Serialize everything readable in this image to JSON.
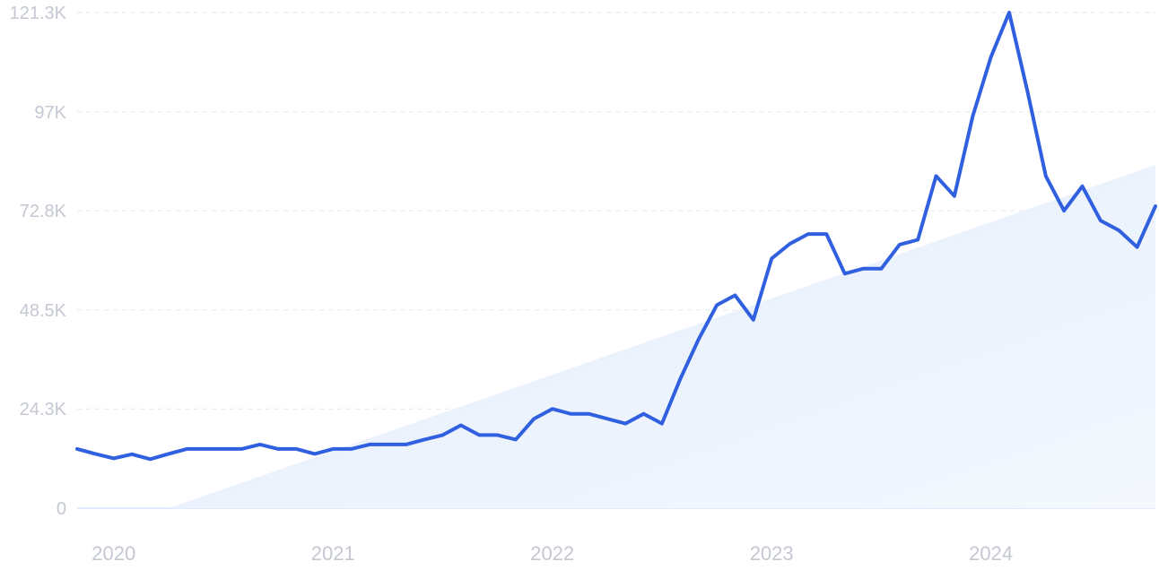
{
  "colors": {
    "line": "#3060e0",
    "trend_fill_light": "#f4f8fe",
    "trend_fill_dark": "#e2edfc",
    "grid": "#e3e6ec",
    "tick_text": "#c4c8d3"
  },
  "chart_data": {
    "type": "line",
    "grid": true,
    "legend": "none",
    "xlim": [
      "2019-11",
      "2024-10"
    ],
    "ylim": [
      0,
      121300
    ],
    "yticks": [
      0,
      24300,
      48500,
      72800,
      97000,
      121300
    ],
    "ytick_labels": [
      "0",
      "24.3K",
      "48.5K",
      "72.8K",
      "97K",
      "121.3K"
    ],
    "xticks": [
      "2020-01",
      "2021-01",
      "2022-01",
      "2023-01",
      "2024-01"
    ],
    "xtick_labels": [
      "2020",
      "2021",
      "2022",
      "2023",
      "2024"
    ],
    "trend": {
      "x": [
        "2020-04",
        "2024-10"
      ],
      "y": [
        0,
        84000
      ]
    },
    "series": [
      {
        "x": [
          "2019-11",
          "2019-12",
          "2020-01",
          "2020-02",
          "2020-03",
          "2020-04",
          "2020-05",
          "2020-06",
          "2020-07",
          "2020-08",
          "2020-09",
          "2020-10",
          "2020-11",
          "2020-12",
          "2021-01",
          "2021-02",
          "2021-03",
          "2021-04",
          "2021-05",
          "2021-06",
          "2021-07",
          "2021-08",
          "2021-09",
          "2021-10",
          "2021-11",
          "2021-12",
          "2022-01",
          "2022-02",
          "2022-03",
          "2022-04",
          "2022-05",
          "2022-06",
          "2022-07",
          "2022-08",
          "2022-09",
          "2022-10",
          "2022-11",
          "2022-12",
          "2023-01",
          "2023-02",
          "2023-03",
          "2023-04",
          "2023-05",
          "2023-06",
          "2023-07",
          "2023-08",
          "2023-09",
          "2023-10",
          "2023-11",
          "2023-12",
          "2024-01",
          "2024-02",
          "2024-03",
          "2024-04",
          "2024-05",
          "2024-06",
          "2024-07",
          "2024-08",
          "2024-09",
          "2024-10"
        ],
        "values": [
          14500,
          13300,
          12200,
          13200,
          12000,
          13300,
          14500,
          14500,
          14500,
          14500,
          15600,
          14500,
          14500,
          13300,
          14500,
          14500,
          15600,
          15600,
          15600,
          16800,
          17900,
          20300,
          17900,
          17900,
          16800,
          21900,
          24300,
          23100,
          23100,
          21900,
          20700,
          23100,
          20700,
          31600,
          41300,
          49700,
          52100,
          46100,
          61100,
          64700,
          67100,
          67100,
          57400,
          58600,
          58600,
          64500,
          65700,
          81300,
          76400,
          95900,
          110400,
          121300,
          102000,
          81300,
          72800,
          78800,
          70400,
          68000,
          63900,
          73900
        ]
      }
    ]
  }
}
